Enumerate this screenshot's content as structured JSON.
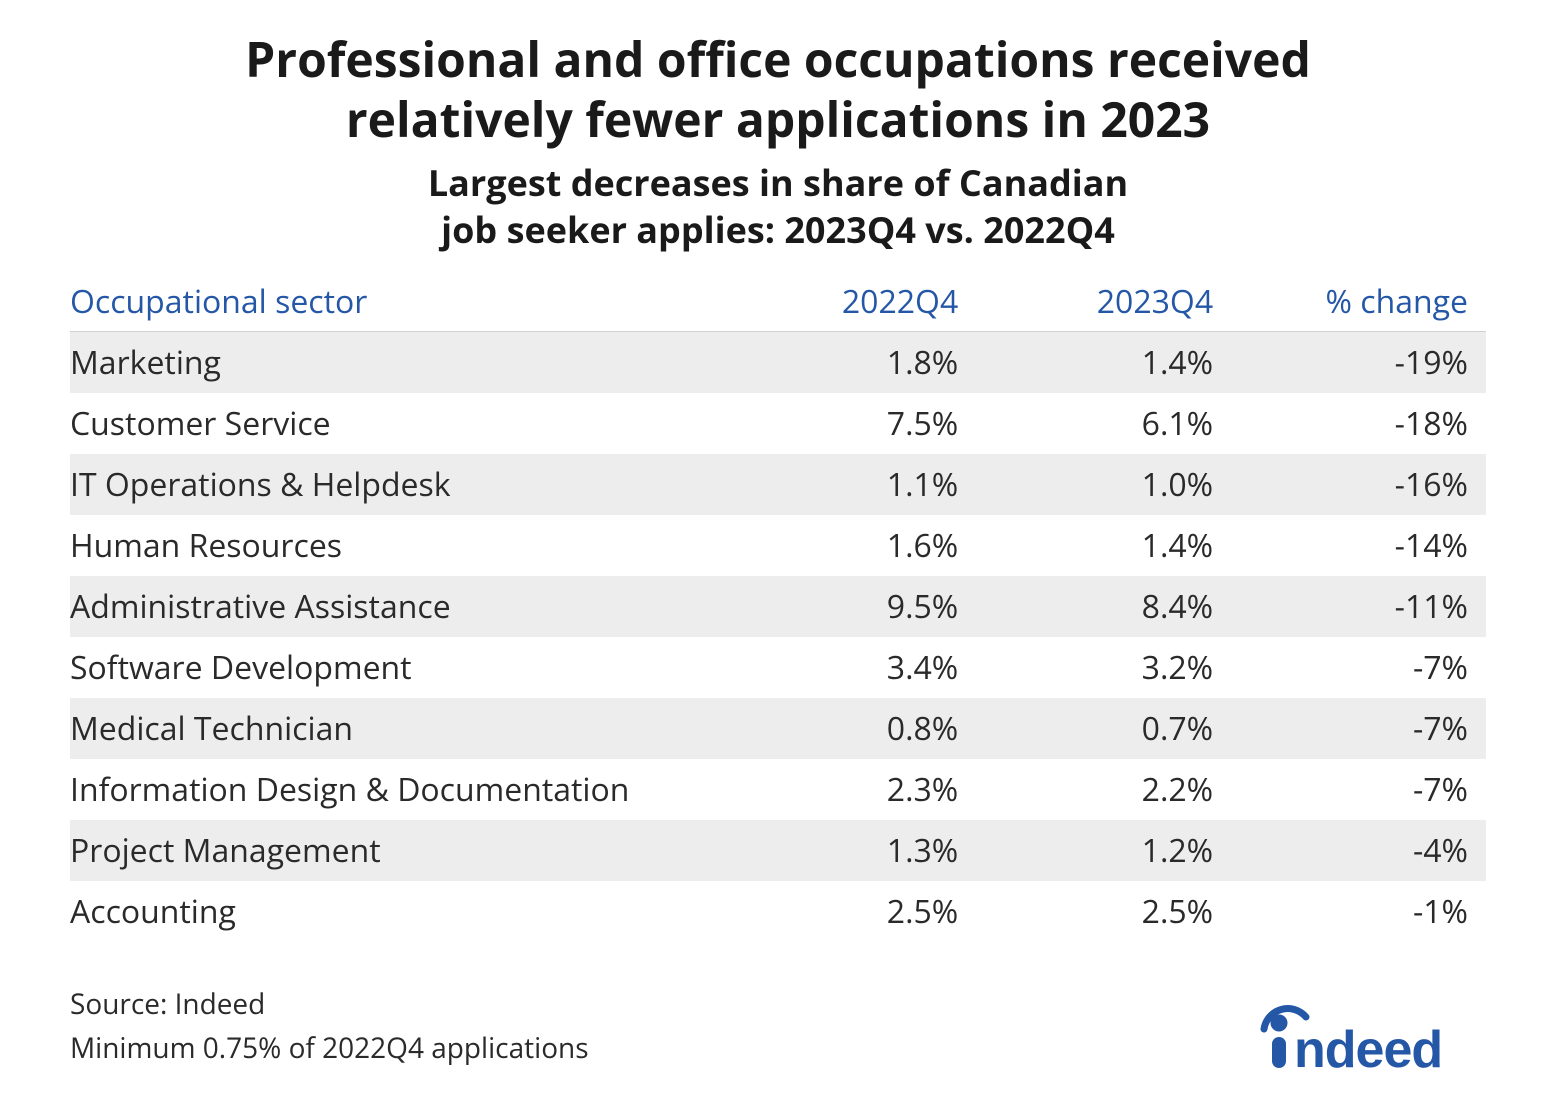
{
  "title_line1": "Professional and office occupations received",
  "title_line2": "relatively fewer applications in 2023",
  "subtitle_line1": "Largest decreases in share of Canadian",
  "subtitle_line2": "job seeker applies: 2023Q4 vs. 2022Q4",
  "table": {
    "type": "table",
    "header_color": "#2557a7",
    "body_text_color": "#2a2a2a",
    "row_stripe_color": "#ededed",
    "background_color": "#ffffff",
    "header_fontsize": 32,
    "body_fontsize": 32,
    "columns": [
      {
        "key": "sector",
        "label": "Occupational sector",
        "align": "left"
      },
      {
        "key": "q2022",
        "label": "2022Q4",
        "align": "right"
      },
      {
        "key": "q2023",
        "label": "2023Q4",
        "align": "right"
      },
      {
        "key": "change",
        "label": "% change",
        "align": "right"
      }
    ],
    "rows": [
      {
        "sector": "Marketing",
        "q2022": "1.8%",
        "q2023": "1.4%",
        "change": "-19%"
      },
      {
        "sector": "Customer Service",
        "q2022": "7.5%",
        "q2023": "6.1%",
        "change": "-18%"
      },
      {
        "sector": "IT Operations & Helpdesk",
        "q2022": "1.1%",
        "q2023": "1.0%",
        "change": "-16%"
      },
      {
        "sector": "Human Resources",
        "q2022": "1.6%",
        "q2023": "1.4%",
        "change": "-14%"
      },
      {
        "sector": "Administrative Assistance",
        "q2022": "9.5%",
        "q2023": "8.4%",
        "change": "-11%"
      },
      {
        "sector": "Software Development",
        "q2022": "3.4%",
        "q2023": "3.2%",
        "change": "-7%"
      },
      {
        "sector": "Medical Technician",
        "q2022": "0.8%",
        "q2023": "0.7%",
        "change": "-7%"
      },
      {
        "sector": "Information Design & Documentation",
        "q2022": "2.3%",
        "q2023": "2.2%",
        "change": "-7%"
      },
      {
        "sector": "Project Management",
        "q2022": "1.3%",
        "q2023": "1.2%",
        "change": "-4%"
      },
      {
        "sector": "Accounting",
        "q2022": "2.5%",
        "q2023": "2.5%",
        "change": "-1%"
      }
    ]
  },
  "footer": {
    "source": "Source: Indeed",
    "note": "Minimum 0.75% of 2022Q4 applications"
  },
  "logo": {
    "name": "indeed",
    "color": "#2557a7"
  },
  "styling": {
    "title_fontsize": 48,
    "title_fontweight": 700,
    "subtitle_fontsize": 36,
    "subtitle_fontweight": 700,
    "footer_fontsize": 28,
    "page_background": "#ffffff",
    "title_color": "#1a1a1a"
  }
}
